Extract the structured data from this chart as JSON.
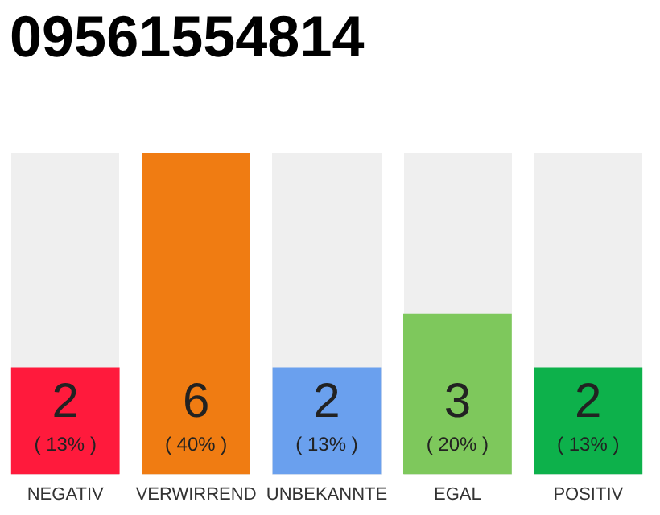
{
  "chart_data": {
    "type": "bar",
    "title": "09561554814",
    "categories": [
      "NEGATIV",
      "VERWIRREND",
      "UNBEKANNTE",
      "EGAL",
      "POSITIV"
    ],
    "values": [
      2,
      6,
      2,
      3,
      2
    ],
    "colors": [
      "#ff1a3c",
      "#f07c12",
      "#6aa0ee",
      "#7ec85c",
      "#0db14b"
    ],
    "value_labels": [
      "2\n( 13% )",
      "6\n( 40% )",
      "2\n( 13% )",
      "3\n( 20% )",
      "2\n( 13% )"
    ],
    "ylim": [
      0,
      6
    ],
    "tick_labels": "x",
    "grid": false,
    "legend": false
  }
}
